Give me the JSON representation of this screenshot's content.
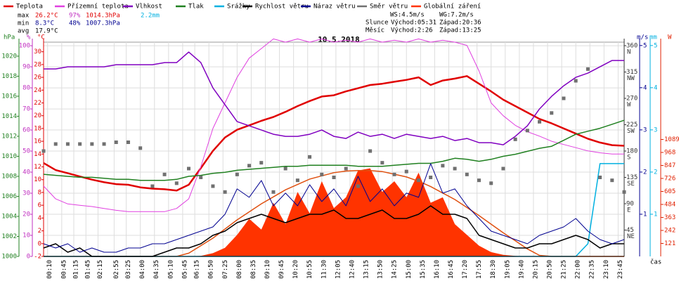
{
  "chart_data": {
    "type": "line",
    "title": "10.5.2018",
    "xlabel": "čas",
    "xlim": [
      0,
      1440
    ],
    "xticks": [
      {
        "value": 10,
        "label": "00:10"
      },
      {
        "value": 45,
        "label": "00:45"
      },
      {
        "value": 75,
        "label": "01:15"
      },
      {
        "value": 105,
        "label": "01:45"
      },
      {
        "value": 135,
        "label": "02:15"
      },
      {
        "value": 175,
        "label": "02:55"
      },
      {
        "value": 205,
        "label": "03:25"
      },
      {
        "value": 240,
        "label": "04:00"
      },
      {
        "value": 275,
        "label": "04:35"
      },
      {
        "value": 310,
        "label": "05:10"
      },
      {
        "value": 345,
        "label": "05:45"
      },
      {
        "value": 375,
        "label": "06:15"
      },
      {
        "value": 410,
        "label": "06:50"
      },
      {
        "value": 445,
        "label": "07:25"
      },
      {
        "value": 480,
        "label": "08:00"
      },
      {
        "value": 515,
        "label": "08:35"
      },
      {
        "value": 550,
        "label": "09:10"
      },
      {
        "value": 585,
        "label": "09:45"
      },
      {
        "value": 620,
        "label": "10:20"
      },
      {
        "value": 655,
        "label": "10:55"
      },
      {
        "value": 690,
        "label": "11:30"
      },
      {
        "value": 725,
        "label": "12:05"
      },
      {
        "value": 760,
        "label": "12:40"
      },
      {
        "value": 795,
        "label": "13:15"
      },
      {
        "value": 830,
        "label": "13:50"
      },
      {
        "value": 865,
        "label": "14:25"
      },
      {
        "value": 900,
        "label": "15:00"
      },
      {
        "value": 935,
        "label": "15:35"
      },
      {
        "value": 970,
        "label": "16:10"
      },
      {
        "value": 1005,
        "label": "16:45"
      },
      {
        "value": 1040,
        "label": "17:20"
      },
      {
        "value": 1075,
        "label": "17:55"
      },
      {
        "value": 1110,
        "label": "18:30"
      },
      {
        "value": 1145,
        "label": "19:05"
      },
      {
        "value": 1180,
        "label": "19:40"
      },
      {
        "value": 1215,
        "label": "20:15"
      },
      {
        "value": 1250,
        "label": "20:50"
      },
      {
        "value": 1285,
        "label": "21:25"
      },
      {
        "value": 1320,
        "label": "22:00"
      },
      {
        "value": 1355,
        "label": "22:35"
      },
      {
        "value": 1390,
        "label": "23:10"
      },
      {
        "value": 1425,
        "label": "23:45"
      }
    ],
    "grid": true,
    "axes": [
      {
        "id": "hpa",
        "label": "hPa",
        "color": "#208020",
        "lim": [
          1000,
          1021.4
        ],
        "ticks": [
          1000,
          1002,
          1004,
          1006,
          1008,
          1010,
          1012,
          1014,
          1016,
          1018,
          1020
        ]
      },
      {
        "id": "pct",
        "label": "%",
        "color": "#c030c0",
        "lim": [
          0,
          101.7
        ],
        "ticks": [
          0,
          10,
          20,
          30,
          40,
          50,
          60,
          70,
          80,
          90,
          100
        ]
      },
      {
        "id": "c",
        "label": "°C",
        "color": "#e00000",
        "lim": [
          -2,
          31.5
        ],
        "ticks": [
          -2,
          0,
          2,
          4,
          6,
          8,
          10,
          12,
          14,
          16,
          18,
          20,
          22,
          24,
          26,
          28,
          30
        ]
      },
      {
        "id": "dir",
        "color": "#333333",
        "lim": [
          0,
          366
        ],
        "ticks": [
          45,
          90,
          135,
          180,
          225,
          270,
          315,
          360
        ],
        "tick_names": [
          "NE",
          "E",
          "SE",
          "S",
          "SW",
          "W",
          "NW",
          "N"
        ]
      },
      {
        "id": "ms",
        "label": "m/s",
        "color": "#000090",
        "lim": [
          0,
          5.08
        ],
        "ticks": [
          1,
          2,
          3,
          4,
          5
        ]
      },
      {
        "id": "mm",
        "label": "mm",
        "color": "#00b0e0",
        "lim": [
          0,
          5.08
        ],
        "ticks": [
          1,
          2,
          3,
          4,
          5
        ]
      },
      {
        "id": "w",
        "label": "W",
        "color": "#e02000",
        "lim": [
          0,
          1995
        ],
        "ticks": [
          121,
          242,
          363,
          484,
          605,
          726,
          847,
          968,
          1089
        ]
      }
    ],
    "x": [
      0,
      30,
      60,
      90,
      120,
      150,
      180,
      210,
      240,
      270,
      300,
      330,
      360,
      390,
      420,
      450,
      480,
      510,
      540,
      570,
      600,
      630,
      660,
      690,
      720,
      750,
      780,
      810,
      840,
      870,
      900,
      930,
      960,
      990,
      1020,
      1050,
      1080,
      1110,
      1140,
      1170,
      1200,
      1230,
      1260,
      1290,
      1320,
      1350,
      1380,
      1410,
      1440
    ],
    "clear_sky": {
      "color": "#e05010",
      "axis": "w",
      "values": [
        0,
        0,
        0,
        0,
        0,
        0,
        0,
        0,
        0,
        0,
        0,
        0,
        30,
        100,
        170,
        255,
        340,
        415,
        490,
        555,
        620,
        670,
        720,
        750,
        780,
        795,
        800,
        800,
        790,
        765,
        740,
        700,
        650,
        590,
        530,
        455,
        380,
        300,
        220,
        145,
        70,
        10,
        0,
        0,
        0,
        0,
        0,
        0,
        0
      ]
    },
    "series": [
      {
        "name": "Teplota",
        "color": "#e00000",
        "axis": "c",
        "kind": "line",
        "width": 2.5,
        "values": [
          12.6,
          11.5,
          11.0,
          10.5,
          10.0,
          9.6,
          9.3,
          9.2,
          8.8,
          8.6,
          8.5,
          8.3,
          9.2,
          11.8,
          14.5,
          16.6,
          17.8,
          18.5,
          19.2,
          19.8,
          20.6,
          21.5,
          22.3,
          23.0,
          23.2,
          23.8,
          24.3,
          24.8,
          25.0,
          25.3,
          25.6,
          26.0,
          24.8,
          25.5,
          25.8,
          26.2,
          25.0,
          23.8,
          22.5,
          21.5,
          20.5,
          19.5,
          18.8,
          18.0,
          17.2,
          16.4,
          15.8,
          15.4,
          15.3
        ]
      },
      {
        "name": "Přízemní teplota",
        "color": "#e040e0",
        "axis": "c",
        "kind": "line",
        "width": 1,
        "values": [
          9,
          7,
          6.2,
          6,
          5.8,
          5.5,
          5.2,
          5,
          5,
          5,
          5,
          5.5,
          7,
          12,
          18,
          22,
          26,
          29,
          30.5,
          32,
          31.5,
          32,
          31.5,
          32,
          31.5,
          31.8,
          31.5,
          32,
          31.5,
          31.8,
          31.5,
          32,
          31.5,
          31.8,
          31.5,
          31,
          27,
          22,
          20,
          18.5,
          17.5,
          16.8,
          16,
          15.5,
          15,
          14.5,
          14.2,
          14,
          14
        ]
      },
      {
        "name": "Vlhkost",
        "color": "#8000c0",
        "axis": "pct",
        "kind": "line",
        "width": 1.5,
        "values": [
          89,
          89,
          90,
          90,
          90,
          90,
          91,
          91,
          91,
          91,
          92,
          92,
          97,
          92,
          80,
          72,
          64,
          62,
          60,
          58,
          57,
          57,
          58,
          60,
          57,
          56,
          59,
          57,
          58,
          56,
          58,
          57,
          56,
          57,
          55,
          56,
          54,
          54,
          53,
          57,
          62,
          70,
          76,
          81,
          85,
          87,
          90,
          93,
          93
        ]
      },
      {
        "name": "Tlak",
        "color": "#208020",
        "axis": "hpa",
        "kind": "line",
        "width": 1.5,
        "values": [
          1008.2,
          1008.1,
          1008.0,
          1007.9,
          1007.9,
          1007.8,
          1007.7,
          1007.7,
          1007.6,
          1007.6,
          1007.6,
          1007.7,
          1008.0,
          1008.1,
          1008.3,
          1008.4,
          1008.6,
          1008.7,
          1008.8,
          1008.9,
          1009.0,
          1009.0,
          1009.1,
          1009.1,
          1009.1,
          1009.1,
          1009.0,
          1009.0,
          1009.0,
          1009.1,
          1009.2,
          1009.3,
          1009.3,
          1009.5,
          1009.8,
          1009.7,
          1009.5,
          1009.7,
          1010.0,
          1010.2,
          1010.5,
          1010.8,
          1011.0,
          1011.6,
          1012.2,
          1012.5,
          1012.8,
          1013.2,
          1013.6
        ]
      },
      {
        "name": "Srážky",
        "color": "#00b0e0",
        "axis": "mm",
        "kind": "line",
        "width": 1.5,
        "values": [
          0,
          0,
          0,
          0,
          0,
          0,
          0,
          0,
          0,
          0,
          0,
          0,
          0,
          0,
          0,
          0,
          0,
          0,
          0,
          0,
          0,
          0,
          0,
          0,
          0,
          0,
          0,
          0,
          0,
          0,
          0,
          0,
          0,
          0,
          0,
          0,
          0,
          0,
          0,
          0,
          0,
          0,
          0,
          0,
          0,
          0.3,
          2.2,
          2.2,
          2.2
        ]
      },
      {
        "name": "Rychlost větru",
        "color": "#000000",
        "axis": "ms",
        "kind": "line",
        "width": 1.5,
        "values": [
          0.2,
          0.3,
          0.1,
          0.2,
          0,
          0,
          0,
          0,
          0,
          0,
          0.1,
          0.2,
          0.2,
          0.3,
          0.5,
          0.6,
          0.8,
          0.9,
          1.0,
          0.9,
          0.8,
          0.9,
          1.0,
          1.0,
          1.1,
          0.9,
          0.9,
          1.0,
          1.1,
          0.9,
          0.9,
          1.0,
          1.2,
          1.0,
          1.0,
          0.9,
          0.5,
          0.4,
          0.3,
          0.2,
          0.2,
          0.3,
          0.3,
          0.4,
          0.5,
          0.4,
          0.2,
          0.3,
          0.3
        ]
      },
      {
        "name": "Náraz větru",
        "color": "#000090",
        "axis": "ms",
        "kind": "line",
        "width": 1,
        "values": [
          0.3,
          0.2,
          0.3,
          0.1,
          0.2,
          0.1,
          0.1,
          0.2,
          0.2,
          0.3,
          0.3,
          0.4,
          0.5,
          0.6,
          0.7,
          1.0,
          1.6,
          1.4,
          1.8,
          1.2,
          1.5,
          1.2,
          1.7,
          1.3,
          1.6,
          1.2,
          1.9,
          1.3,
          1.6,
          1.2,
          1.5,
          1.4,
          2.2,
          1.5,
          1.6,
          1.2,
          0.9,
          0.6,
          0.5,
          0.4,
          0.3,
          0.5,
          0.6,
          0.7,
          0.9,
          0.6,
          0.4,
          0.3,
          0.4
        ]
      },
      {
        "name": "Směr větru",
        "color": "#707070",
        "axis": "dir",
        "kind": "points",
        "values": [
          180,
          192,
          192,
          192,
          192,
          192,
          195,
          195,
          185,
          120,
          140,
          125,
          150,
          135,
          120,
          110,
          140,
          155,
          160,
          110,
          150,
          130,
          170,
          140,
          135,
          150,
          120,
          180,
          160,
          140,
          145,
          130,
          135,
          155,
          150,
          140,
          130,
          125,
          150,
          200,
          215,
          230,
          245,
          270,
          300,
          320,
          135,
          130,
          110
        ]
      },
      {
        "name": "Globální záření",
        "color": "#ff3300",
        "axis": "w",
        "kind": "area",
        "values": [
          0,
          0,
          0,
          0,
          0,
          0,
          0,
          0,
          0,
          0,
          0,
          0,
          0,
          5,
          30,
          80,
          200,
          350,
          250,
          500,
          300,
          600,
          400,
          700,
          450,
          550,
          800,
          820,
          600,
          700,
          550,
          780,
          500,
          550,
          300,
          200,
          100,
          40,
          15,
          5,
          0,
          0,
          0,
          0,
          0,
          0,
          0,
          0,
          0
        ]
      }
    ]
  },
  "stats": {
    "rows": [
      {
        "label": "max",
        "temp": "26.2°C",
        "hum": "97%",
        "press": "1014.3hPa",
        "rain": "2.2mm"
      },
      {
        "label": "min",
        "temp": "8.3°C",
        "hum": "48%",
        "press": "1007.3hPa"
      },
      {
        "label": "avg",
        "temp": "17.9°C"
      }
    ],
    "ws": "WS:4.5m/s",
    "wg": "WG:7.2m/s",
    "sun": {
      "label": "Slunce",
      "rise": "Východ:05:31",
      "set": "Západ:20:36"
    },
    "moon": {
      "label": "Měsíc",
      "rise": "Východ:2:26",
      "set": "Západ:13:25"
    }
  }
}
